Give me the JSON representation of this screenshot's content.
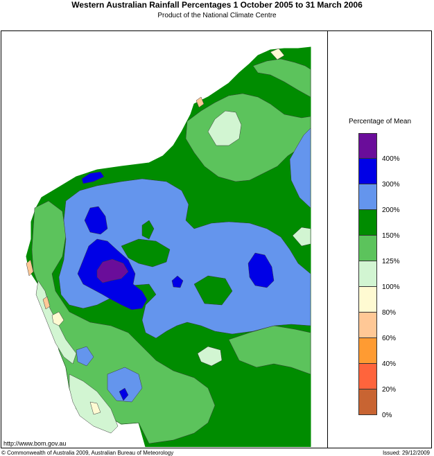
{
  "header": {
    "title": "Western Australian Rainfall Percentages 1 October 2005 to 31 March 2006",
    "subtitle": "Product of the National Climate Centre"
  },
  "legend": {
    "title": "Percentage of Mean",
    "levels": [
      {
        "label": "400%",
        "color": "#6a0d9a"
      },
      {
        "label": "300%",
        "color": "#0000e6"
      },
      {
        "label": "200%",
        "color": "#6495ed"
      },
      {
        "label": "150%",
        "color": "#008c00"
      },
      {
        "label": "125%",
        "color": "#5cc35c"
      },
      {
        "label": "100%",
        "color": "#d2f5d2"
      },
      {
        "label": "80%",
        "color": "#fffad2"
      },
      {
        "label": "60%",
        "color": "#ffc896"
      },
      {
        "label": "40%",
        "color": "#ff9b32"
      },
      {
        "label": "20%",
        "color": "#ff643c"
      },
      {
        "label": "0%",
        "color": "#c86432"
      }
    ]
  },
  "footer": {
    "url": "http://www.bom.gov.au",
    "copyright": "© Commonwealth of Australia 2009, Australian Bureau of Meteorology",
    "issued": "Issued: 29/12/2009"
  }
}
